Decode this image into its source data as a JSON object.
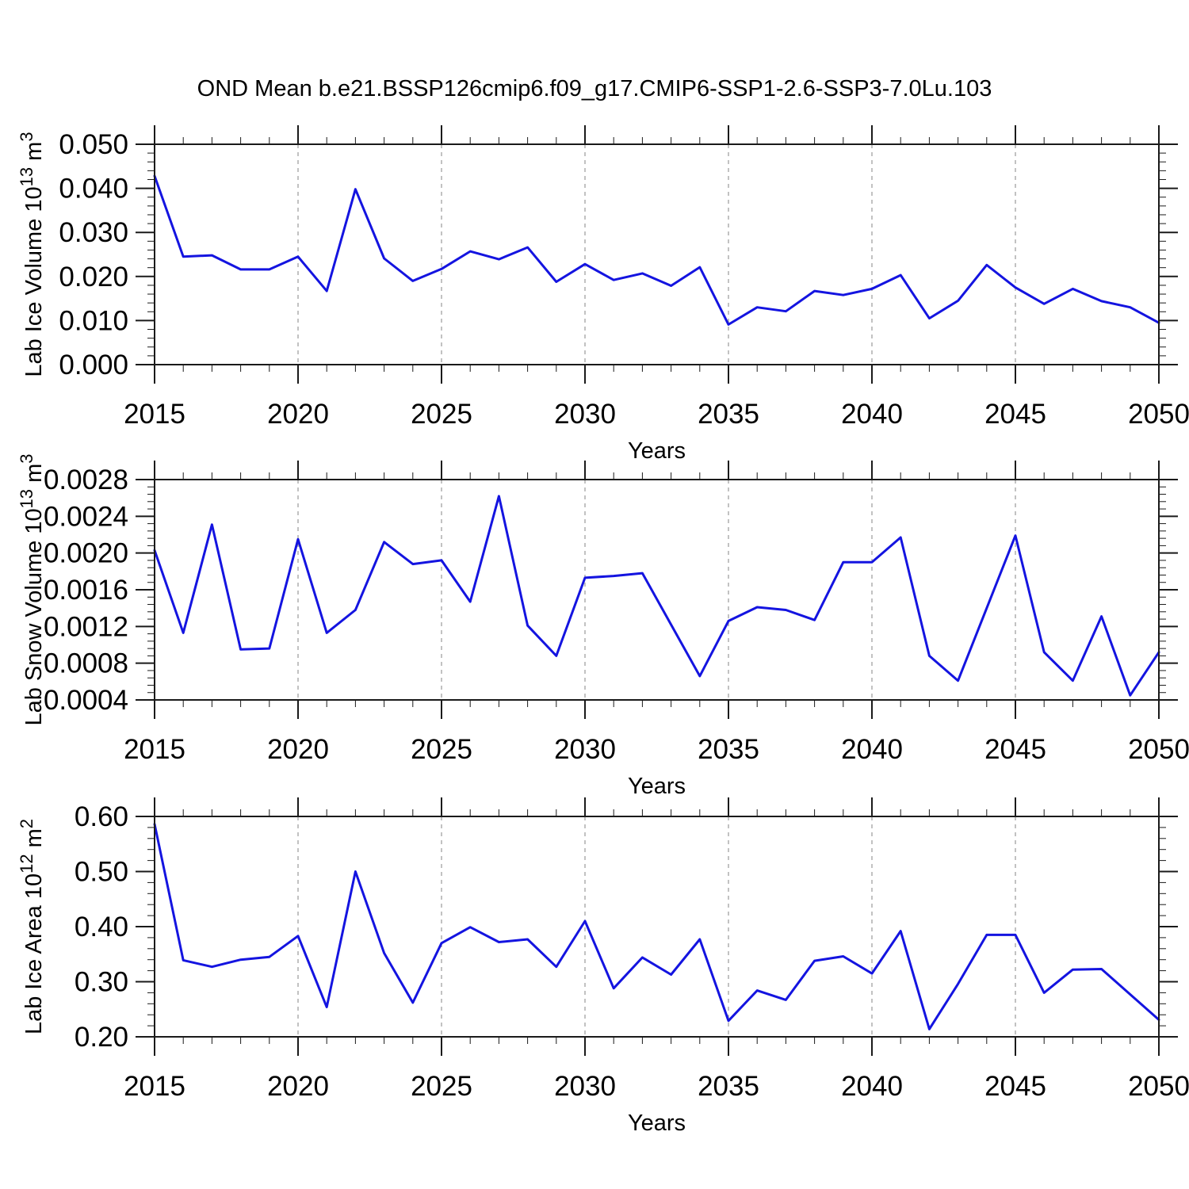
{
  "title": "OND Mean b.e21.BSSP126cmip6.f09_g17.CMIP6-SSP1-2.6-SSP3-7.0Lu.103",
  "x_axis": {
    "label": "Years",
    "range": [
      2015,
      2050
    ],
    "tick_years": [
      2015,
      2020,
      2025,
      2030,
      2035,
      2040,
      2045,
      2050
    ],
    "grid_years": [
      2020,
      2025,
      2030,
      2035,
      2040,
      2045
    ],
    "minor_step_years": 1
  },
  "style": {
    "line_color": "#1414e0",
    "frame_color": "#1a1a1a",
    "grid_color": "#999999",
    "text_color": "#000000",
    "background": "#ffffff"
  },
  "chart_data": [
    {
      "type": "line",
      "xlabel": "Years",
      "ylabel": "Lab Ice Volume 10^13 m^3",
      "ylabel_parts": {
        "prefix": "Lab Ice Volume 10",
        "exponent": "13",
        "unit": " m",
        "unit_exponent": "3"
      },
      "x_start": 2015,
      "x_end": 2050,
      "x_step": 1,
      "ylim": [
        0.0,
        0.05
      ],
      "yticks": [
        0.0,
        0.01,
        0.02,
        0.03,
        0.04,
        0.05
      ],
      "ytick_labels": [
        "0.000",
        "0.010",
        "0.020",
        "0.030",
        "0.040",
        "0.050"
      ],
      "yminor_per_major": 5,
      "grid": "x-dashed",
      "values": [
        0.0428,
        0.0245,
        0.0248,
        0.0216,
        0.0216,
        0.0245,
        0.0167,
        0.0398,
        0.0241,
        0.019,
        0.0217,
        0.0257,
        0.0239,
        0.0266,
        0.0188,
        0.0228,
        0.0192,
        0.0207,
        0.0179,
        0.0221,
        0.0091,
        0.013,
        0.0121,
        0.0167,
        0.0158,
        0.0172,
        0.0203,
        0.0105,
        0.0145,
        0.0226,
        0.0175,
        0.0138,
        0.0172,
        0.0144,
        0.013,
        0.0095
      ]
    },
    {
      "type": "line",
      "xlabel": "Years",
      "ylabel": "Lab Snow Volume 10^13 m^3",
      "ylabel_parts": {
        "prefix": "Lab Snow Volume 10",
        "exponent": "13",
        "unit": " m",
        "unit_exponent": "3"
      },
      "x_start": 2015,
      "x_end": 2050,
      "x_step": 1,
      "ylim": [
        0.0004,
        0.0028
      ],
      "yticks": [
        0.0004,
        0.0008,
        0.0012,
        0.0016,
        0.002,
        0.0024,
        0.0028
      ],
      "ytick_labels": [
        "0.0004",
        "0.0008",
        "0.0012",
        "0.0016",
        "0.0020",
        "0.0024",
        "0.0028"
      ],
      "yminor_per_major": 5,
      "grid": "x-dashed",
      "values": [
        0.00203,
        0.00113,
        0.00231,
        0.00095,
        0.00096,
        0.00215,
        0.00113,
        0.00138,
        0.00212,
        0.00188,
        0.00192,
        0.00147,
        0.00262,
        0.00121,
        0.00088,
        0.00173,
        0.00175,
        0.00178,
        0.00122,
        0.00066,
        0.00126,
        0.00141,
        0.00138,
        0.00127,
        0.0019,
        0.0019,
        0.00217,
        0.00088,
        0.00061,
        0.0014,
        0.00219,
        0.00092,
        0.00061,
        0.00131,
        0.00045,
        0.00092
      ]
    },
    {
      "type": "line",
      "xlabel": "Years",
      "ylabel": "Lab Ice Area 10^12 m^2",
      "ylabel_parts": {
        "prefix": "Lab Ice Area 10",
        "exponent": "12",
        "unit": " m",
        "unit_exponent": "2"
      },
      "x_start": 2015,
      "x_end": 2050,
      "x_step": 1,
      "ylim": [
        0.2,
        0.6
      ],
      "yticks": [
        0.2,
        0.3,
        0.4,
        0.5,
        0.6
      ],
      "ytick_labels": [
        "0.20",
        "0.30",
        "0.40",
        "0.50",
        "0.60"
      ],
      "yminor_per_major": 5,
      "grid": "x-dashed",
      "values": [
        0.586,
        0.339,
        0.327,
        0.34,
        0.345,
        0.383,
        0.254,
        0.5,
        0.352,
        0.262,
        0.37,
        0.399,
        0.372,
        0.377,
        0.327,
        0.41,
        0.288,
        0.344,
        0.313,
        0.377,
        0.229,
        0.284,
        0.267,
        0.338,
        0.346,
        0.315,
        0.392,
        0.214,
        0.296,
        0.385,
        0.385,
        0.28,
        0.322,
        0.323,
        0.277,
        0.231
      ]
    }
  ]
}
